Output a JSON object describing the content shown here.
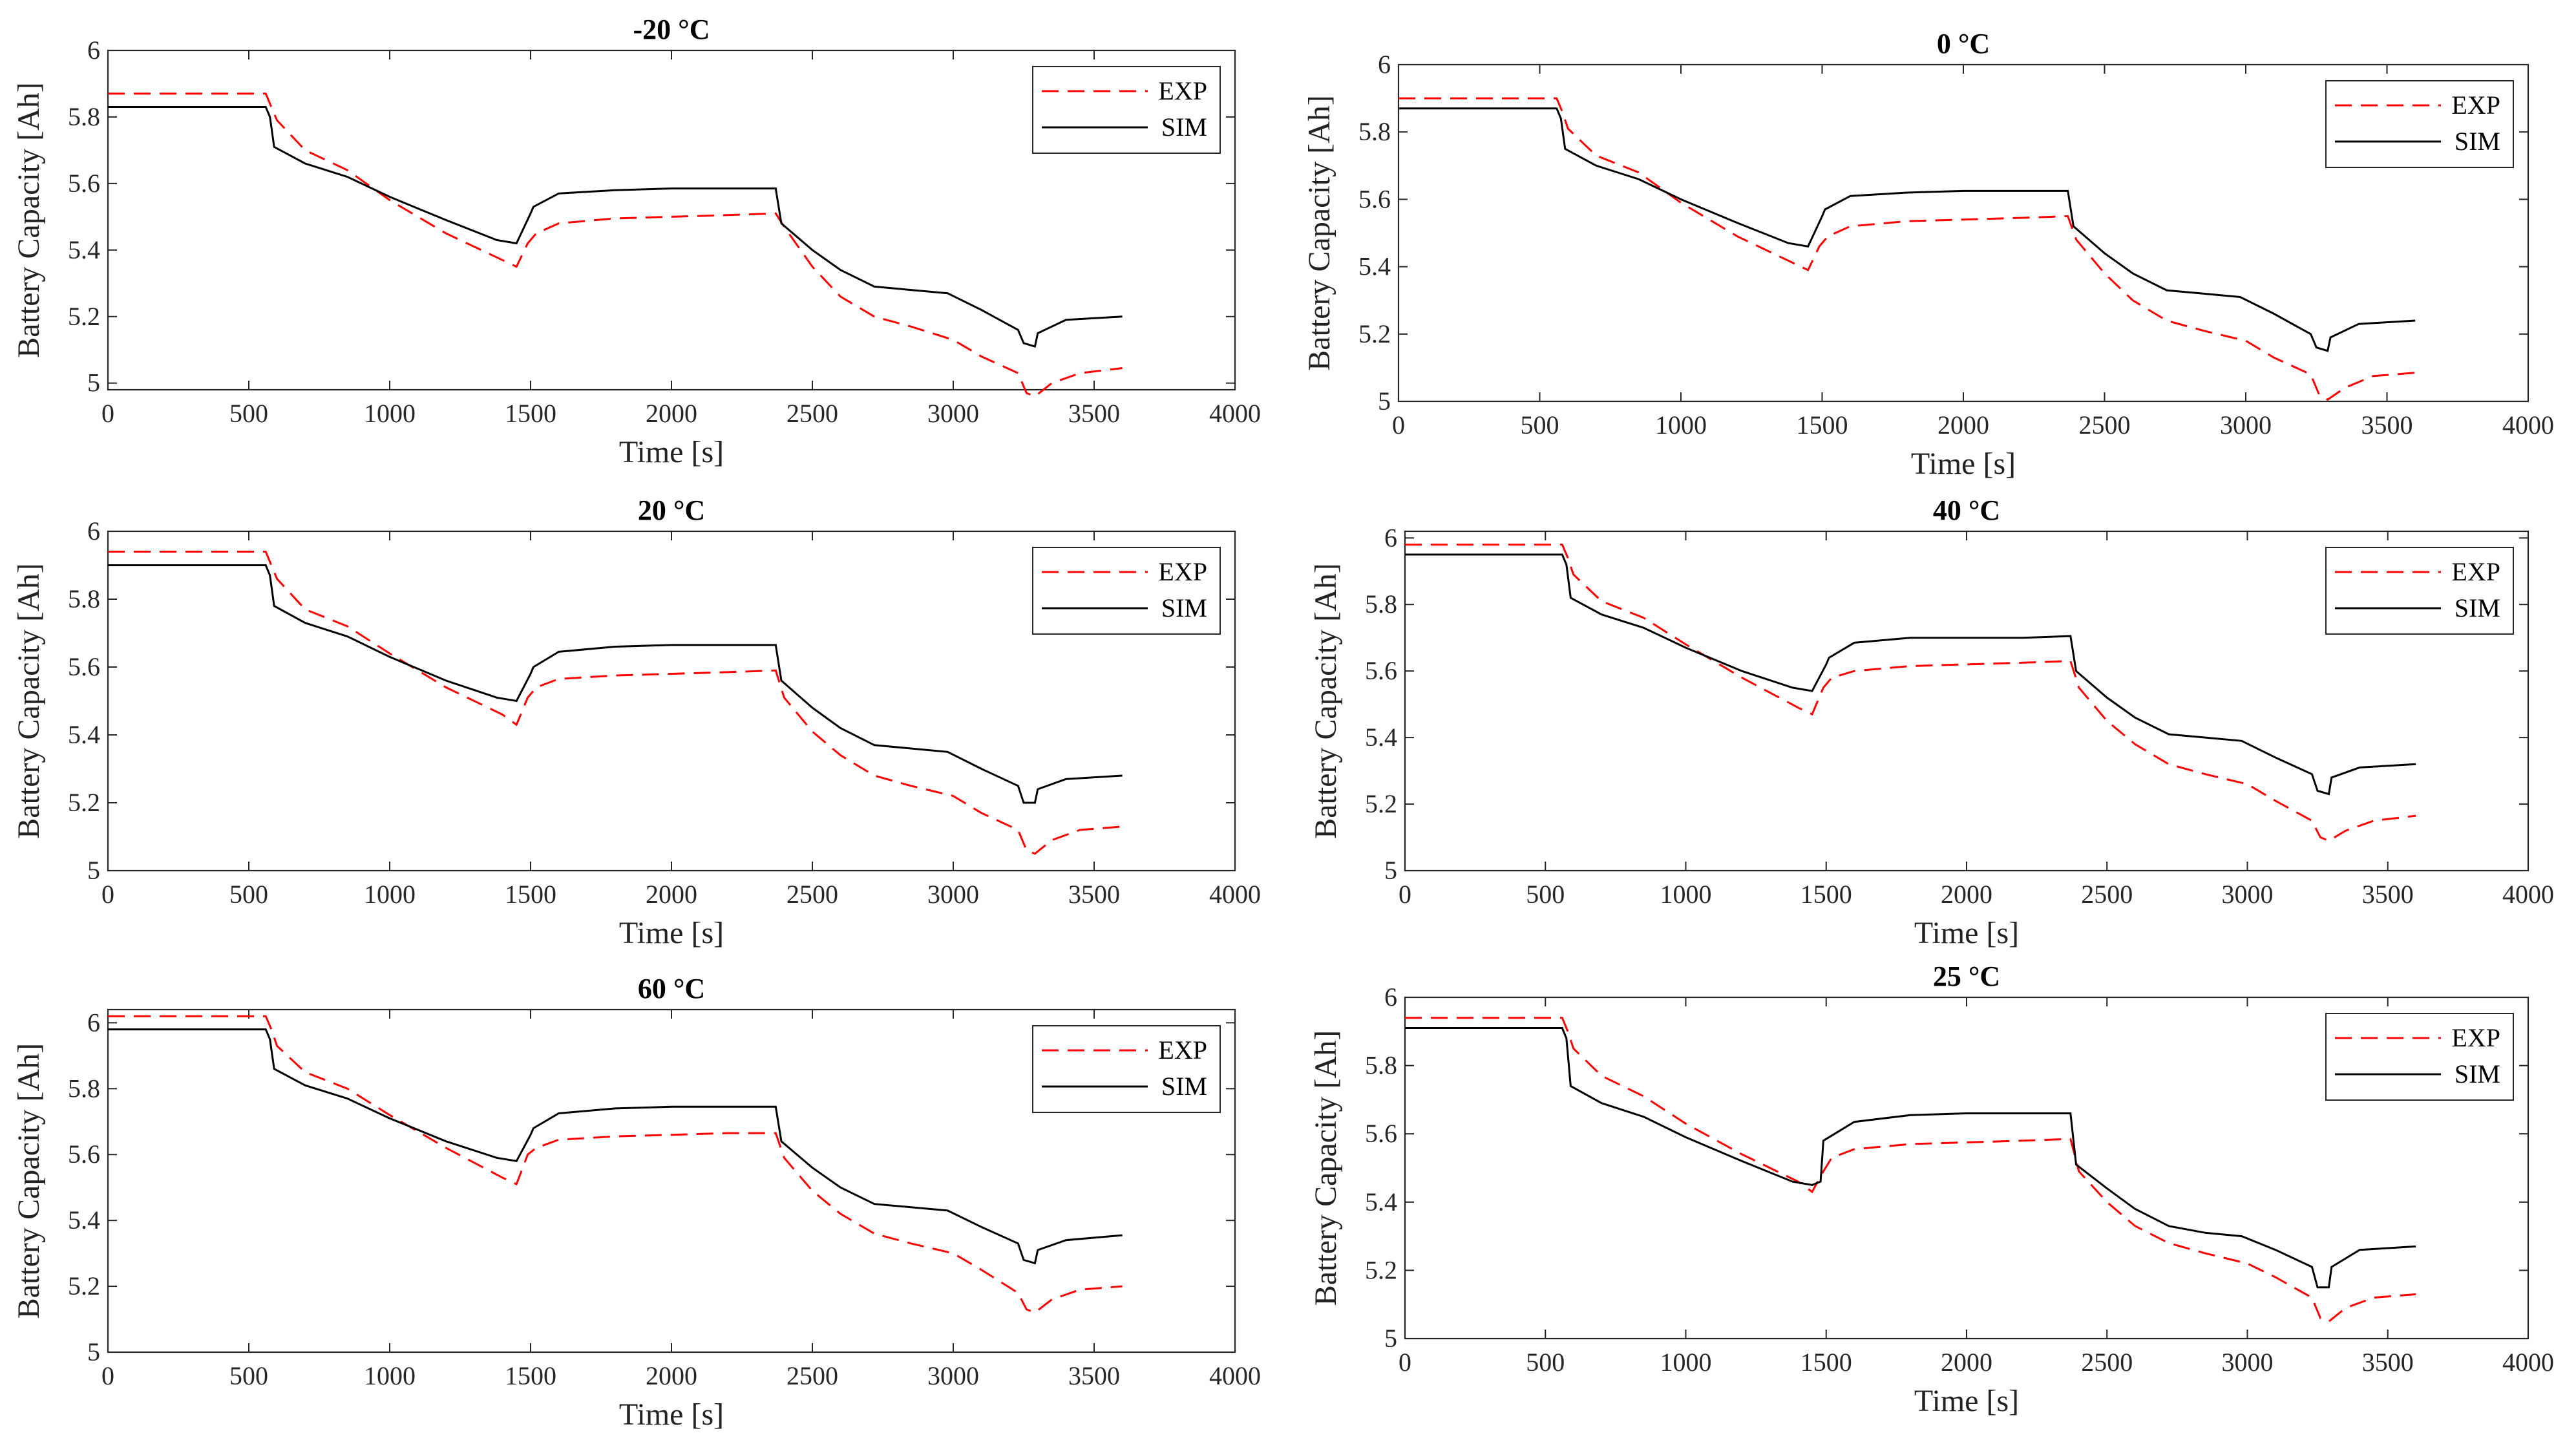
{
  "colors": {
    "exp": "#ff0000",
    "sim": "#000000",
    "axis": "#262626"
  },
  "chart_data": [
    {
      "type": "line",
      "title": "-20 °C",
      "xlabel": "Time [s]",
      "ylabel": "Battery Capacity  [Ah]",
      "xlim": [
        0,
        4000
      ],
      "ylim": [
        4.98,
        6
      ],
      "xticks": [
        "0",
        "500",
        "1000",
        "1500",
        "2000",
        "2500",
        "3000",
        "3500",
        "4000"
      ],
      "yticks": [
        "5",
        "5.2",
        "5.4",
        "5.6",
        "5.8",
        "6"
      ],
      "legend": "top-right",
      "series": [
        {
          "name": "EXP",
          "style": "dashed",
          "color": "#ff0000",
          "x": [
            0,
            560,
            580,
            600,
            700,
            850,
            1000,
            1200,
            1400,
            1450,
            1490,
            1520,
            1600,
            1800,
            2000,
            2200,
            2370,
            2400,
            2500,
            2600,
            2720,
            2850,
            3000,
            3100,
            3230,
            3260,
            3290,
            3350,
            3450,
            3600
          ],
          "y": [
            5.87,
            5.87,
            5.83,
            5.79,
            5.7,
            5.64,
            5.55,
            5.45,
            5.37,
            5.35,
            5.42,
            5.45,
            5.48,
            5.495,
            5.5,
            5.505,
            5.51,
            5.47,
            5.35,
            5.26,
            5.2,
            5.17,
            5.13,
            5.08,
            5.03,
            4.97,
            4.96,
            5.0,
            5.03,
            5.045
          ]
        },
        {
          "name": "SIM",
          "style": "solid",
          "color": "#000000",
          "x": [
            0,
            560,
            575,
            590,
            700,
            850,
            1000,
            1200,
            1380,
            1450,
            1500,
            1510,
            1600,
            1800,
            2000,
            2200,
            2370,
            2390,
            2500,
            2600,
            2720,
            2850,
            2980,
            3100,
            3230,
            3250,
            3290,
            3300,
            3400,
            3600
          ],
          "y": [
            5.83,
            5.83,
            5.8,
            5.71,
            5.66,
            5.62,
            5.56,
            5.49,
            5.43,
            5.42,
            5.51,
            5.53,
            5.57,
            5.58,
            5.585,
            5.585,
            5.585,
            5.48,
            5.4,
            5.34,
            5.29,
            5.28,
            5.27,
            5.22,
            5.16,
            5.12,
            5.11,
            5.15,
            5.19,
            5.2
          ]
        }
      ]
    },
    {
      "type": "line",
      "title": "0 °C",
      "xlabel": "Time [s]",
      "ylabel": "Battery Capacity  [Ah]",
      "xlim": [
        0,
        4000
      ],
      "ylim": [
        5,
        6
      ],
      "xticks": [
        "0",
        "500",
        "1000",
        "1500",
        "2000",
        "2500",
        "3000",
        "3500",
        "4000"
      ],
      "yticks": [
        "5",
        "5.2",
        "5.4",
        "5.6",
        "5.8",
        "6"
      ],
      "legend": "top-right",
      "series": [
        {
          "name": "EXP",
          "style": "dashed",
          "color": "#ff0000",
          "x": [
            0,
            560,
            580,
            600,
            700,
            850,
            1000,
            1200,
            1400,
            1450,
            1490,
            1520,
            1600,
            1800,
            2000,
            2200,
            2370,
            2400,
            2500,
            2600,
            2720,
            2850,
            3000,
            3100,
            3230,
            3260,
            3290,
            3350,
            3450,
            3600
          ],
          "y": [
            5.9,
            5.9,
            5.86,
            5.81,
            5.73,
            5.68,
            5.59,
            5.49,
            5.41,
            5.39,
            5.46,
            5.49,
            5.52,
            5.535,
            5.54,
            5.545,
            5.55,
            5.48,
            5.38,
            5.3,
            5.24,
            5.21,
            5.18,
            5.13,
            5.08,
            5.02,
            5.005,
            5.04,
            5.075,
            5.085
          ]
        },
        {
          "name": "SIM",
          "style": "solid",
          "color": "#000000",
          "x": [
            0,
            560,
            575,
            590,
            700,
            850,
            1000,
            1200,
            1380,
            1450,
            1500,
            1510,
            1600,
            1800,
            2000,
            2200,
            2370,
            2390,
            2500,
            2600,
            2720,
            2850,
            2980,
            3100,
            3230,
            3250,
            3290,
            3300,
            3400,
            3600
          ],
          "y": [
            5.87,
            5.87,
            5.84,
            5.75,
            5.7,
            5.66,
            5.6,
            5.53,
            5.47,
            5.46,
            5.55,
            5.57,
            5.61,
            5.62,
            5.625,
            5.625,
            5.625,
            5.52,
            5.44,
            5.38,
            5.33,
            5.32,
            5.31,
            5.26,
            5.2,
            5.16,
            5.15,
            5.19,
            5.23,
            5.24
          ]
        }
      ]
    },
    {
      "type": "line",
      "title": "20 °C",
      "xlabel": "Time [s]",
      "ylabel": "Battery Capacity  [Ah]",
      "xlim": [
        0,
        4000
      ],
      "ylim": [
        5,
        6
      ],
      "xticks": [
        "0",
        "500",
        "1000",
        "1500",
        "2000",
        "2500",
        "3000",
        "3500",
        "4000"
      ],
      "yticks": [
        "5",
        "5.2",
        "5.4",
        "5.6",
        "5.8",
        "6"
      ],
      "legend": "top-right",
      "series": [
        {
          "name": "EXP",
          "style": "dashed",
          "color": "#ff0000",
          "x": [
            0,
            560,
            580,
            600,
            700,
            850,
            1000,
            1200,
            1400,
            1450,
            1490,
            1520,
            1600,
            1800,
            2000,
            2200,
            2370,
            2400,
            2500,
            2600,
            2720,
            2850,
            3000,
            3100,
            3230,
            3260,
            3290,
            3350,
            3450,
            3600
          ],
          "y": [
            5.94,
            5.94,
            5.9,
            5.86,
            5.77,
            5.72,
            5.64,
            5.54,
            5.46,
            5.43,
            5.51,
            5.54,
            5.565,
            5.575,
            5.58,
            5.585,
            5.59,
            5.51,
            5.41,
            5.34,
            5.28,
            5.25,
            5.22,
            5.17,
            5.12,
            5.06,
            5.05,
            5.09,
            5.12,
            5.13
          ]
        },
        {
          "name": "SIM",
          "style": "solid",
          "color": "#000000",
          "x": [
            0,
            560,
            575,
            590,
            700,
            850,
            1000,
            1200,
            1380,
            1450,
            1500,
            1510,
            1600,
            1800,
            2000,
            2200,
            2370,
            2390,
            2500,
            2600,
            2720,
            2850,
            2980,
            3100,
            3230,
            3250,
            3290,
            3300,
            3400,
            3600
          ],
          "y": [
            5.9,
            5.9,
            5.87,
            5.78,
            5.73,
            5.69,
            5.63,
            5.56,
            5.51,
            5.5,
            5.58,
            5.6,
            5.645,
            5.66,
            5.665,
            5.665,
            5.665,
            5.56,
            5.48,
            5.42,
            5.37,
            5.36,
            5.35,
            5.3,
            5.25,
            5.2,
            5.2,
            5.24,
            5.27,
            5.28
          ]
        }
      ]
    },
    {
      "type": "line",
      "title": "40 °C",
      "xlabel": "Time [s]",
      "ylabel": "Battery Capacity  [Ah]",
      "xlim": [
        0,
        4000
      ],
      "ylim": [
        5,
        6.02
      ],
      "xticks": [
        "0",
        "500",
        "1000",
        "1500",
        "2000",
        "2500",
        "3000",
        "3500",
        "4000"
      ],
      "yticks": [
        "5",
        "5.2",
        "5.4",
        "5.6",
        "5.8",
        "6"
      ],
      "legend": "top-right",
      "series": [
        {
          "name": "EXP",
          "style": "dashed",
          "color": "#ff0000",
          "x": [
            0,
            560,
            580,
            600,
            700,
            850,
            1000,
            1200,
            1400,
            1450,
            1490,
            1520,
            1600,
            1800,
            2000,
            2200,
            2370,
            2400,
            2500,
            2600,
            2720,
            2850,
            3000,
            3100,
            3230,
            3260,
            3290,
            3350,
            3450,
            3600
          ],
          "y": [
            5.98,
            5.98,
            5.94,
            5.89,
            5.81,
            5.76,
            5.68,
            5.58,
            5.49,
            5.47,
            5.55,
            5.58,
            5.6,
            5.615,
            5.62,
            5.625,
            5.63,
            5.55,
            5.45,
            5.38,
            5.32,
            5.29,
            5.26,
            5.21,
            5.15,
            5.1,
            5.09,
            5.12,
            5.15,
            5.165
          ]
        },
        {
          "name": "SIM",
          "style": "solid",
          "color": "#000000",
          "x": [
            0,
            560,
            575,
            590,
            700,
            850,
            1000,
            1200,
            1380,
            1450,
            1500,
            1510,
            1600,
            1800,
            2000,
            2200,
            2370,
            2390,
            2500,
            2600,
            2720,
            2850,
            2980,
            3100,
            3230,
            3250,
            3290,
            3300,
            3400,
            3600
          ],
          "y": [
            5.95,
            5.95,
            5.92,
            5.82,
            5.77,
            5.73,
            5.67,
            5.6,
            5.55,
            5.54,
            5.62,
            5.64,
            5.685,
            5.7,
            5.7,
            5.7,
            5.705,
            5.6,
            5.52,
            5.46,
            5.41,
            5.4,
            5.39,
            5.34,
            5.29,
            5.24,
            5.23,
            5.28,
            5.31,
            5.32
          ]
        }
      ]
    },
    {
      "type": "line",
      "title": "60 °C",
      "xlabel": "Time [s]",
      "ylabel": "Battery Capacity  [Ah]",
      "xlim": [
        0,
        4000
      ],
      "ylim": [
        5,
        6.04
      ],
      "xticks": [
        "0",
        "500",
        "1000",
        "1500",
        "2000",
        "2500",
        "3000",
        "3500",
        "4000"
      ],
      "yticks": [
        "5",
        "5.2",
        "5.4",
        "5.6",
        "5.8",
        "6"
      ],
      "legend": "top-right",
      "series": [
        {
          "name": "EXP",
          "style": "dashed",
          "color": "#ff0000",
          "x": [
            0,
            560,
            580,
            600,
            700,
            850,
            1000,
            1200,
            1400,
            1450,
            1490,
            1520,
            1600,
            1800,
            2000,
            2200,
            2370,
            2400,
            2500,
            2600,
            2720,
            2850,
            3000,
            3100,
            3230,
            3260,
            3290,
            3350,
            3450,
            3600
          ],
          "y": [
            6.02,
            6.02,
            5.98,
            5.93,
            5.85,
            5.8,
            5.72,
            5.62,
            5.53,
            5.51,
            5.6,
            5.62,
            5.645,
            5.655,
            5.66,
            5.665,
            5.665,
            5.59,
            5.49,
            5.42,
            5.36,
            5.33,
            5.3,
            5.25,
            5.18,
            5.13,
            5.12,
            5.16,
            5.19,
            5.2
          ]
        },
        {
          "name": "SIM",
          "style": "solid",
          "color": "#000000",
          "x": [
            0,
            560,
            575,
            590,
            700,
            850,
            1000,
            1200,
            1380,
            1450,
            1500,
            1510,
            1600,
            1800,
            2000,
            2200,
            2370,
            2390,
            2500,
            2600,
            2720,
            2850,
            2980,
            3100,
            3230,
            3250,
            3290,
            3300,
            3400,
            3600
          ],
          "y": [
            5.98,
            5.98,
            5.95,
            5.86,
            5.81,
            5.77,
            5.71,
            5.64,
            5.59,
            5.58,
            5.66,
            5.68,
            5.725,
            5.74,
            5.745,
            5.745,
            5.745,
            5.64,
            5.56,
            5.5,
            5.45,
            5.44,
            5.43,
            5.38,
            5.33,
            5.28,
            5.27,
            5.31,
            5.34,
            5.355
          ]
        }
      ]
    },
    {
      "type": "line",
      "title": "25 °C",
      "xlabel": "Time [s]",
      "ylabel": "Battery Capacity  [Ah]",
      "xlim": [
        0,
        4000
      ],
      "ylim": [
        5,
        6
      ],
      "xticks": [
        "0",
        "500",
        "1000",
        "1500",
        "2000",
        "2500",
        "3000",
        "3500",
        "4000"
      ],
      "yticks": [
        "5",
        "5.2",
        "5.4",
        "5.6",
        "5.8",
        "6"
      ],
      "legend": "top-right",
      "series": [
        {
          "name": "EXP",
          "style": "dashed",
          "color": "#ff0000",
          "x": [
            0,
            560,
            580,
            600,
            700,
            850,
            1000,
            1200,
            1400,
            1450,
            1490,
            1520,
            1600,
            1800,
            2000,
            2200,
            2370,
            2400,
            2500,
            2600,
            2720,
            2850,
            3000,
            3100,
            3230,
            3260,
            3290,
            3350,
            3450,
            3600
          ],
          "y": [
            5.94,
            5.94,
            5.9,
            5.85,
            5.77,
            5.71,
            5.63,
            5.54,
            5.46,
            5.43,
            5.49,
            5.53,
            5.555,
            5.57,
            5.575,
            5.58,
            5.585,
            5.49,
            5.4,
            5.33,
            5.28,
            5.25,
            5.22,
            5.18,
            5.12,
            5.06,
            5.05,
            5.09,
            5.12,
            5.13
          ]
        },
        {
          "name": "SIM",
          "style": "solid",
          "color": "#000000",
          "x": [
            0,
            560,
            575,
            590,
            700,
            850,
            1000,
            1200,
            1380,
            1450,
            1480,
            1490,
            1600,
            1800,
            2000,
            2200,
            2370,
            2390,
            2500,
            2600,
            2720,
            2850,
            2980,
            3100,
            3230,
            3250,
            3290,
            3300,
            3400,
            3600
          ],
          "y": [
            5.91,
            5.91,
            5.88,
            5.74,
            5.69,
            5.65,
            5.59,
            5.52,
            5.46,
            5.45,
            5.46,
            5.58,
            5.635,
            5.655,
            5.66,
            5.66,
            5.66,
            5.51,
            5.44,
            5.38,
            5.33,
            5.31,
            5.3,
            5.26,
            5.21,
            5.15,
            5.15,
            5.21,
            5.26,
            5.27
          ]
        }
      ]
    }
  ]
}
